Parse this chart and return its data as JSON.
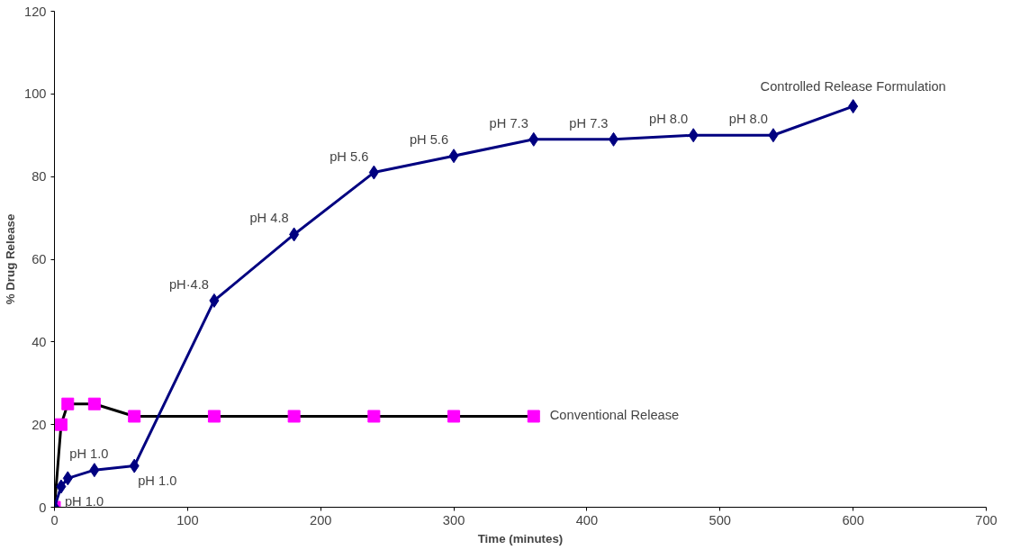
{
  "chart_data": {
    "type": "line",
    "xlabel": "Time (minutes)",
    "ylabel": "% Drug Release",
    "xlim": [
      0,
      700
    ],
    "xticks": [
      0,
      100,
      200,
      300,
      400,
      500,
      600,
      700
    ],
    "ylim": [
      0,
      120
    ],
    "yticks": [
      0,
      20,
      40,
      60,
      80,
      100,
      120
    ],
    "grid": false,
    "legend": false,
    "line_style": "solid",
    "series": [
      {
        "name": "Conventional Release",
        "color": "#000000",
        "colors": [
          "#ff00ff",
          "#ff00ff",
          "#ff00ff",
          "#ff00ff",
          "#ff00ff",
          "#ff00ff",
          "#ff00ff",
          "#ff00ff",
          "#ff00ff",
          "#ff00ff"
        ],
        "marker": "square",
        "x": [
          0,
          5,
          10,
          30,
          60,
          120,
          180,
          240,
          300,
          360
        ],
        "values": [
          0,
          20,
          25,
          25,
          22,
          22,
          22,
          22,
          22,
          22
        ]
      },
      {
        "name": "Controlled Release Formulation",
        "color": "#000080",
        "marker": "diamond",
        "x": [
          0,
          5,
          10,
          30,
          60,
          120,
          180,
          240,
          300,
          360,
          420,
          480,
          540,
          600
        ],
        "values": [
          0,
          5,
          7,
          9,
          10,
          50,
          66,
          81,
          85,
          89,
          89,
          90,
          90,
          97
        ]
      }
    ],
    "annotations": [
      {
        "text": "pH 1.0",
        "x": 5,
        "y": 5
      },
      {
        "text": "pH 1.0",
        "x": 30,
        "y": 9
      },
      {
        "text": "pH 1.0",
        "x": 60,
        "y": 10
      },
      {
        "text": "pH·4.8",
        "x": 120,
        "y": 50
      },
      {
        "text": "pH 4.8",
        "x": 180,
        "y": 66
      },
      {
        "text": "pH 5.6",
        "x": 240,
        "y": 81
      },
      {
        "text": "pH 5.6",
        "x": 300,
        "y": 85
      },
      {
        "text": "pH 7.3",
        "x": 360,
        "y": 89
      },
      {
        "text": "pH 7.3",
        "x": 420,
        "y": 89
      },
      {
        "text": "pH 8.0",
        "x": 480,
        "y": 90
      },
      {
        "text": "pH 8.0",
        "x": 540,
        "y": 90
      }
    ]
  }
}
